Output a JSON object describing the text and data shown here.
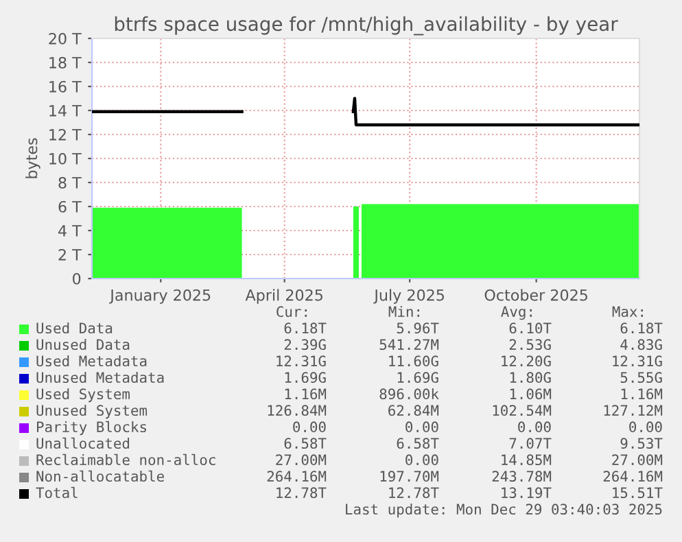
{
  "chart_data": {
    "type": "area",
    "title": "btrfs space usage for /mnt/high_availability - by year",
    "ylabel": "bytes",
    "x": [
      "2024-11-26",
      "2025-03-15",
      "2025-03-16",
      "2025-06-04",
      "2025-06-05",
      "2025-06-06",
      "2025-06-08",
      "2025-06-09",
      "2025-06-10",
      "2025-12-29"
    ],
    "series": [
      {
        "name": "Used Data",
        "color": "#33ff33",
        "values": [
          5.9,
          5.9,
          null,
          6.0,
          6.0,
          6.0,
          6.0,
          null,
          6.2,
          6.2
        ]
      },
      {
        "name": "Unused Data",
        "color": "#00cc00",
        "values": [
          null,
          null,
          null,
          null,
          null,
          null,
          null,
          null,
          null,
          null
        ]
      },
      {
        "name": "Used Metadata",
        "color": "#3399ff",
        "values": [
          null,
          null,
          null,
          null,
          null,
          null,
          null,
          null,
          null,
          null
        ]
      },
      {
        "name": "Unused Metadata",
        "color": "#0000cc",
        "values": [
          null,
          null,
          null,
          null,
          null,
          null,
          null,
          null,
          null,
          null
        ]
      },
      {
        "name": "Used System",
        "color": "#ffff33",
        "values": [
          null,
          null,
          null,
          null,
          null,
          null,
          null,
          null,
          null,
          null
        ]
      },
      {
        "name": "Unused System",
        "color": "#cccc00",
        "values": [
          null,
          null,
          null,
          null,
          null,
          null,
          null,
          null,
          null,
          null
        ]
      },
      {
        "name": "Parity Blocks",
        "color": "#9900ff",
        "values": [
          null,
          null,
          null,
          null,
          null,
          null,
          null,
          null,
          null,
          null
        ]
      },
      {
        "name": "Unallocated",
        "color": "#ffffff",
        "values": [
          null,
          null,
          null,
          null,
          null,
          null,
          null,
          null,
          null,
          null
        ]
      },
      {
        "name": "Reclaimable non-alloc",
        "color": "#bbbbbb",
        "values": [
          null,
          null,
          null,
          null,
          null,
          null,
          null,
          null,
          null,
          null
        ]
      },
      {
        "name": "Non-allocatable",
        "color": "#888888",
        "values": [
          null,
          null,
          null,
          null,
          null,
          null,
          null,
          null,
          null,
          null
        ]
      },
      {
        "name": "Total",
        "color": "#000000",
        "type": "line",
        "values": [
          13.9,
          13.9,
          null,
          13.9,
          15.0,
          12.8,
          12.8,
          12.8,
          12.8,
          12.8
        ]
      }
    ],
    "xlim": [
      "2024-11-26",
      "2025-12-29"
    ],
    "xticks": [
      {
        "value": "2025-01-15",
        "label": "January 2025"
      },
      {
        "value": "2025-04-15",
        "label": "April 2025"
      },
      {
        "value": "2025-07-15",
        "label": "July 2025"
      },
      {
        "value": "2025-10-15",
        "label": "October 2025"
      }
    ],
    "ylim": [
      0,
      20
    ],
    "yticks": [
      0,
      {
        "value": 2,
        "label": "2 T"
      },
      {
        "value": 4,
        "label": "4 T"
      },
      {
        "value": 6,
        "label": "6 T"
      },
      {
        "value": 8,
        "label": "8 T"
      },
      {
        "value": 10,
        "label": "10 T"
      },
      {
        "value": 12,
        "label": "12 T"
      },
      {
        "value": 14,
        "label": "14 T"
      },
      {
        "value": 16,
        "label": "16 T"
      },
      {
        "value": 18,
        "label": "18 T"
      },
      {
        "value": 20,
        "label": "20 T"
      }
    ],
    "grid": true,
    "legend": "bottom",
    "annotations": [
      "Cur:",
      "Min:",
      "Avg:",
      "Max:",
      "6.18T",
      "5.96T",
      "6.10T",
      "6.18T",
      "2.39G",
      "541.27M",
      "2.53G",
      "4.83G",
      "12.31G",
      "11.60G",
      "12.20G",
      "12.31G",
      "1.69G",
      "1.69G",
      "1.80G",
      "5.55G",
      "1.16M",
      "896.00k",
      "1.06M",
      "1.16M",
      "126.84M",
      "62.84M",
      "102.54M",
      "127.12M",
      "0.00",
      "0.00",
      "0.00",
      "0.00",
      "6.58T",
      "6.58T",
      "7.07T",
      "9.53T",
      "27.00M",
      "0.00",
      "14.85M",
      "27.00M",
      "264.16M",
      "197.70M",
      "243.78M",
      "264.16M",
      "12.78T",
      "12.78T",
      "13.19T",
      "15.51T",
      "Last update: Mon Dec 29 03:40:03 2025"
    ]
  }
}
